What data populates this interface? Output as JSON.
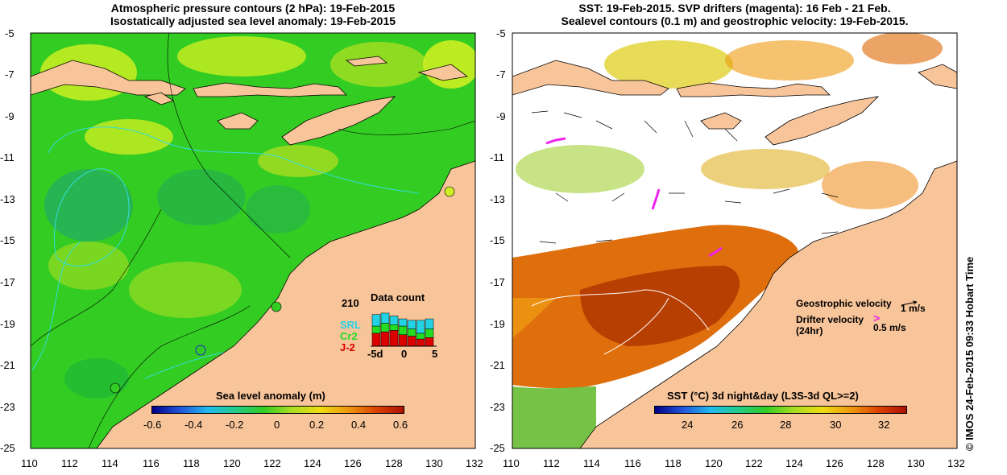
{
  "left_panel": {
    "title_line1": "Atmospheric pressure contours (2 hPa): 19-Feb-2015",
    "title_line2": "Isostatically adjusted sea level anomaly: 19-Feb-2015",
    "colorbar_label": "Sea level anomaly (m)",
    "colorbar_ticks": [
      "-0.6",
      "-0.4",
      "-0.2",
      "0",
      "0.2",
      "0.4",
      "0.6"
    ],
    "data_count": {
      "title": "Data count",
      "max_label": "210",
      "missions": [
        "SRL",
        "Cr2",
        "J-2"
      ],
      "mission_colors": [
        "#22d3e6",
        "#22dd22",
        "#dd0000"
      ],
      "x_ticks": [
        "-5d",
        "0",
        "5"
      ],
      "bars": [
        {
          "srl": 40,
          "cr2": 25,
          "j2": 45
        },
        {
          "srl": 35,
          "cr2": 30,
          "j2": 50
        },
        {
          "srl": 30,
          "cr2": 20,
          "j2": 55
        },
        {
          "srl": 25,
          "cr2": 30,
          "j2": 40
        },
        {
          "srl": 30,
          "cr2": 25,
          "j2": 35
        },
        {
          "srl": 45,
          "cr2": 20,
          "j2": 25
        },
        {
          "srl": 35,
          "cr2": 30,
          "j2": 30
        }
      ]
    }
  },
  "right_panel": {
    "title_line1": "SST: 19-Feb-2015. SVP drifters (magenta): 16 Feb - 21 Feb.",
    "title_line2": "Sealevel contours (0.1 m) and geostrophic velocity: 19-Feb-2015.",
    "geostrophic_label": "Geostrophic velocity",
    "geostrophic_scale": "1 m/s",
    "drifter_label_1": "Drifter velocity",
    "drifter_label_2": "(24hr)",
    "drifter_scale": "0.5 m/s",
    "colorbar_label": "SST (°C) 3d night&day (L3S-3d QL>=2)",
    "colorbar_ticks": [
      "24",
      "26",
      "28",
      "30",
      "32"
    ]
  },
  "axes": {
    "y_ticks": [
      "-5",
      "-7",
      "-9",
      "-11",
      "-13",
      "-15",
      "-17",
      "-19",
      "-21",
      "-23",
      "-25"
    ],
    "x_ticks": [
      "110",
      "112",
      "114",
      "116",
      "118",
      "120",
      "122",
      "124",
      "126",
      "128",
      "130",
      "132"
    ]
  },
  "credit": "© IMOS 24-Feb-2015 09:33 Hobart Time",
  "colors": {
    "land": "#f8c49a",
    "ocean_green": "#33cc22",
    "sla_yellow": "#ccee22",
    "contour_cyan": "#33dddd",
    "sst_orange": "#dd6600",
    "sst_dark": "#b23a00",
    "drifter": "#ee22ee"
  }
}
